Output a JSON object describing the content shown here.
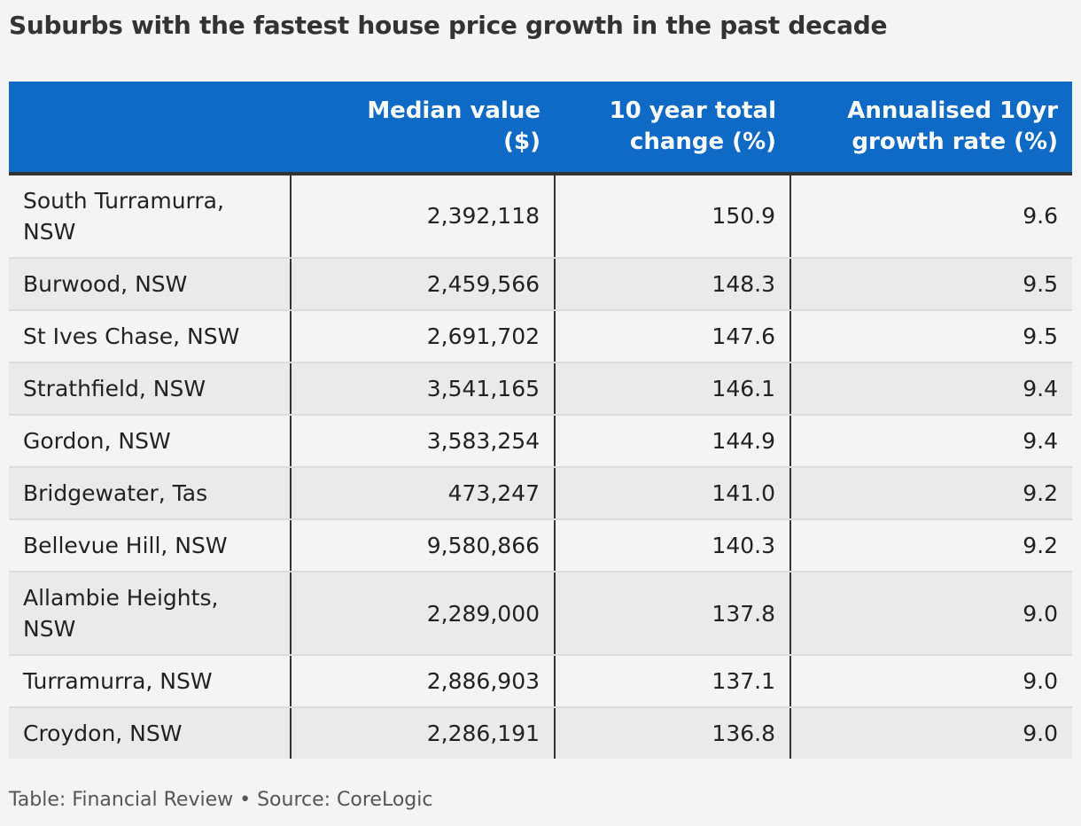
{
  "title": "Suburbs with the fastest house price growth in the past decade",
  "footer": "Table: Financial Review • Source: CoreLogic",
  "colors": {
    "header_bg": "#0f6ac6",
    "header_text": "#ffffff",
    "divider": "#333333",
    "row_light": "#f4f4f4",
    "row_dark": "#eaeaea"
  },
  "chart_data": {
    "type": "table",
    "title": "Suburbs with the fastest house price growth in the past decade",
    "columns": [
      "",
      "Median value ($)",
      "10 year total change (%)",
      "Annualised 10yr growth rate (%)"
    ],
    "header_lines": [
      [],
      [
        "Median value",
        "($)"
      ],
      [
        "10 year total",
        "change (%)"
      ],
      [
        "Annualised 10yr",
        "growth rate (%)"
      ]
    ],
    "rows": [
      {
        "suburb": "South Turramurra, NSW",
        "median": "2,392,118",
        "change": "150.9",
        "rate": "9.6"
      },
      {
        "suburb": "Burwood, NSW",
        "median": "2,459,566",
        "change": "148.3",
        "rate": "9.5"
      },
      {
        "suburb": "St Ives Chase, NSW",
        "median": "2,691,702",
        "change": "147.6",
        "rate": "9.5"
      },
      {
        "suburb": "Strathfield, NSW",
        "median": "3,541,165",
        "change": "146.1",
        "rate": "9.4"
      },
      {
        "suburb": "Gordon, NSW",
        "median": "3,583,254",
        "change": "144.9",
        "rate": "9.4"
      },
      {
        "suburb": "Bridgewater, Tas",
        "median": "473,247",
        "change": "141.0",
        "rate": "9.2"
      },
      {
        "suburb": "Bellevue Hill, NSW",
        "median": "9,580,866",
        "change": "140.3",
        "rate": "9.2"
      },
      {
        "suburb": "Allambie Heights, NSW",
        "median": "2,289,000",
        "change": "137.8",
        "rate": "9.0"
      },
      {
        "suburb": "Turramurra, NSW",
        "median": "2,886,903",
        "change": "137.1",
        "rate": "9.0"
      },
      {
        "suburb": "Croydon, NSW",
        "median": "2,286,191",
        "change": "136.8",
        "rate": "9.0"
      }
    ],
    "source": "Table: Financial Review • Source: CoreLogic"
  }
}
